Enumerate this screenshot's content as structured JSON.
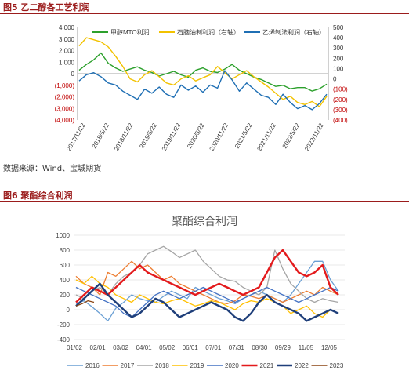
{
  "figure5": {
    "caption": "图5 乙二醇各工艺利润",
    "source": "数据来源：Wind、宝城期货",
    "chart_data": {
      "type": "line",
      "y_left": {
        "ticks": [
          "4,000",
          "3,000",
          "2,000",
          "1,000",
          "0",
          "(1,000)",
          "(2,000)",
          "(3,000)",
          "(4,000)"
        ],
        "range": [
          -4000,
          4000
        ]
      },
      "y_right": {
        "ticks": [
          "500",
          "400",
          "300",
          "200",
          "100",
          "0",
          "(100)",
          "(200)",
          "(300)",
          "(400)"
        ],
        "range": [
          -400,
          500
        ]
      },
      "x_ticks": [
        "2017/11/22",
        "2018/5/22",
        "2018/11/22",
        "2019/5/22",
        "2019/11/22",
        "2020/5/22",
        "2020/11/22",
        "2021/5/22",
        "2021/11/22",
        "2022/5/22",
        "2022/11/22"
      ],
      "series": [
        {
          "name": "甲醇MTO利润",
          "color": "#2ca02c",
          "axis": "left",
          "values": [
            300,
            800,
            1200,
            1800,
            900,
            500,
            200,
            400,
            600,
            300,
            100,
            -200,
            0,
            200,
            -100,
            -300,
            300,
            500,
            200,
            100,
            400,
            800,
            300,
            0,
            -300,
            -500,
            -800,
            -1100,
            -1000,
            -1300,
            -1200,
            -1200,
            -1500,
            -1300,
            -900
          ]
        },
        {
          "name": "石脑油制利润（右轴）",
          "color": "#f2c200",
          "axis": "right",
          "values": [
            320,
            400,
            380,
            360,
            310,
            220,
            120,
            0,
            -30,
            40,
            80,
            20,
            -40,
            -60,
            0,
            30,
            -20,
            10,
            40,
            120,
            60,
            0,
            40,
            80,
            20,
            -30,
            -80,
            -140,
            -200,
            -170,
            -230,
            -250,
            -220,
            -270,
            -170
          ]
        },
        {
          "name": "乙烯制法利润（右轴）",
          "color": "#1f6fb4",
          "axis": "right",
          "values": [
            -20,
            40,
            60,
            20,
            -40,
            -60,
            -120,
            -160,
            -200,
            -100,
            -140,
            -80,
            -150,
            -180,
            -60,
            -110,
            -70,
            -130,
            -60,
            -90,
            80,
            -10,
            -120,
            -40,
            -100,
            -160,
            -180,
            -250,
            -150,
            -230,
            -290,
            -260,
            -300,
            -240,
            -150
          ]
        }
      ]
    }
  },
  "figure6": {
    "caption": "图6 聚酯综合利润",
    "chart_data": {
      "type": "line",
      "title": "聚酯综合利润",
      "y_ticks": [
        "1000",
        "800",
        "600",
        "400",
        "200",
        "0",
        "-200",
        "-400"
      ],
      "ylim": [
        -400,
        1000
      ],
      "x_ticks": [
        "01/02",
        "02/01",
        "03/02",
        "04/01",
        "05/02",
        "06/01",
        "07/01",
        "07/31",
        "08/30",
        "09/29",
        "11/05",
        "12/05"
      ],
      "series": [
        {
          "name": "2016",
          "color": "#6a9fd4",
          "values": [
            80,
            120,
            40,
            -50,
            -150,
            20,
            100,
            200,
            150,
            120,
            100,
            180,
            250,
            200,
            150,
            300,
            250,
            200,
            150,
            120,
            80,
            150,
            200,
            250,
            200,
            150,
            100,
            200,
            350,
            500,
            650,
            650,
            400,
            250
          ]
        },
        {
          "name": "2017",
          "color": "#ed7d31",
          "values": [
            450,
            350,
            300,
            200,
            500,
            450,
            550,
            650,
            550,
            600,
            500,
            400,
            450,
            350,
            300,
            250,
            200,
            150,
            100,
            80,
            120,
            200,
            180,
            150,
            200,
            150,
            100,
            150,
            200,
            250,
            200,
            300,
            250,
            200
          ]
        },
        {
          "name": "2018",
          "color": "#a5a5a5",
          "values": [
            200,
            150,
            250,
            300,
            200,
            350,
            450,
            500,
            600,
            750,
            800,
            850,
            780,
            700,
            750,
            800,
            650,
            550,
            450,
            400,
            380,
            300,
            250,
            200,
            300,
            800,
            550,
            350,
            250,
            150,
            100,
            150,
            120,
            100
          ]
        },
        {
          "name": "2019",
          "color": "#ffc000",
          "values": [
            400,
            350,
            450,
            350,
            300,
            200,
            150,
            100,
            200,
            150,
            100,
            80,
            120,
            150,
            100,
            50,
            80,
            120,
            100,
            50,
            0,
            80,
            120,
            100,
            150,
            100,
            50,
            -50,
            0,
            50,
            -50,
            -100,
            0,
            -50
          ]
        },
        {
          "name": "2020",
          "color": "#4472c4",
          "values": [
            300,
            250,
            200,
            150,
            100,
            50,
            -50,
            -100,
            0,
            100,
            200,
            250,
            200,
            150,
            200,
            250,
            300,
            250,
            200,
            150,
            100,
            150,
            200,
            250,
            300,
            250,
            200,
            150,
            100,
            150,
            200,
            250,
            300,
            250
          ]
        },
        {
          "name": "2021",
          "color": "#e31a1c",
          "values": [
            100,
            200,
            300,
            250,
            200,
            300,
            400,
            500,
            600,
            500,
            450,
            400,
            350,
            300,
            250,
            200,
            250,
            300,
            350,
            300,
            250,
            200,
            250,
            300,
            500,
            700,
            800,
            650,
            500,
            450,
            500,
            600,
            300,
            200
          ]
        },
        {
          "name": "2022",
          "color": "#1f3f7a",
          "values": [
            50,
            150,
            250,
            350,
            200,
            100,
            0,
            -100,
            -50,
            50,
            150,
            100,
            0,
            -100,
            -50,
            0,
            50,
            100,
            50,
            0,
            -100,
            -150,
            -50,
            100,
            200,
            100,
            50,
            0,
            -50,
            -150,
            -100,
            -50,
            0,
            -50
          ]
        },
        {
          "name": "2023",
          "color": "#8b4513",
          "values": [
            50,
            80,
            120,
            100
          ]
        }
      ]
    }
  }
}
